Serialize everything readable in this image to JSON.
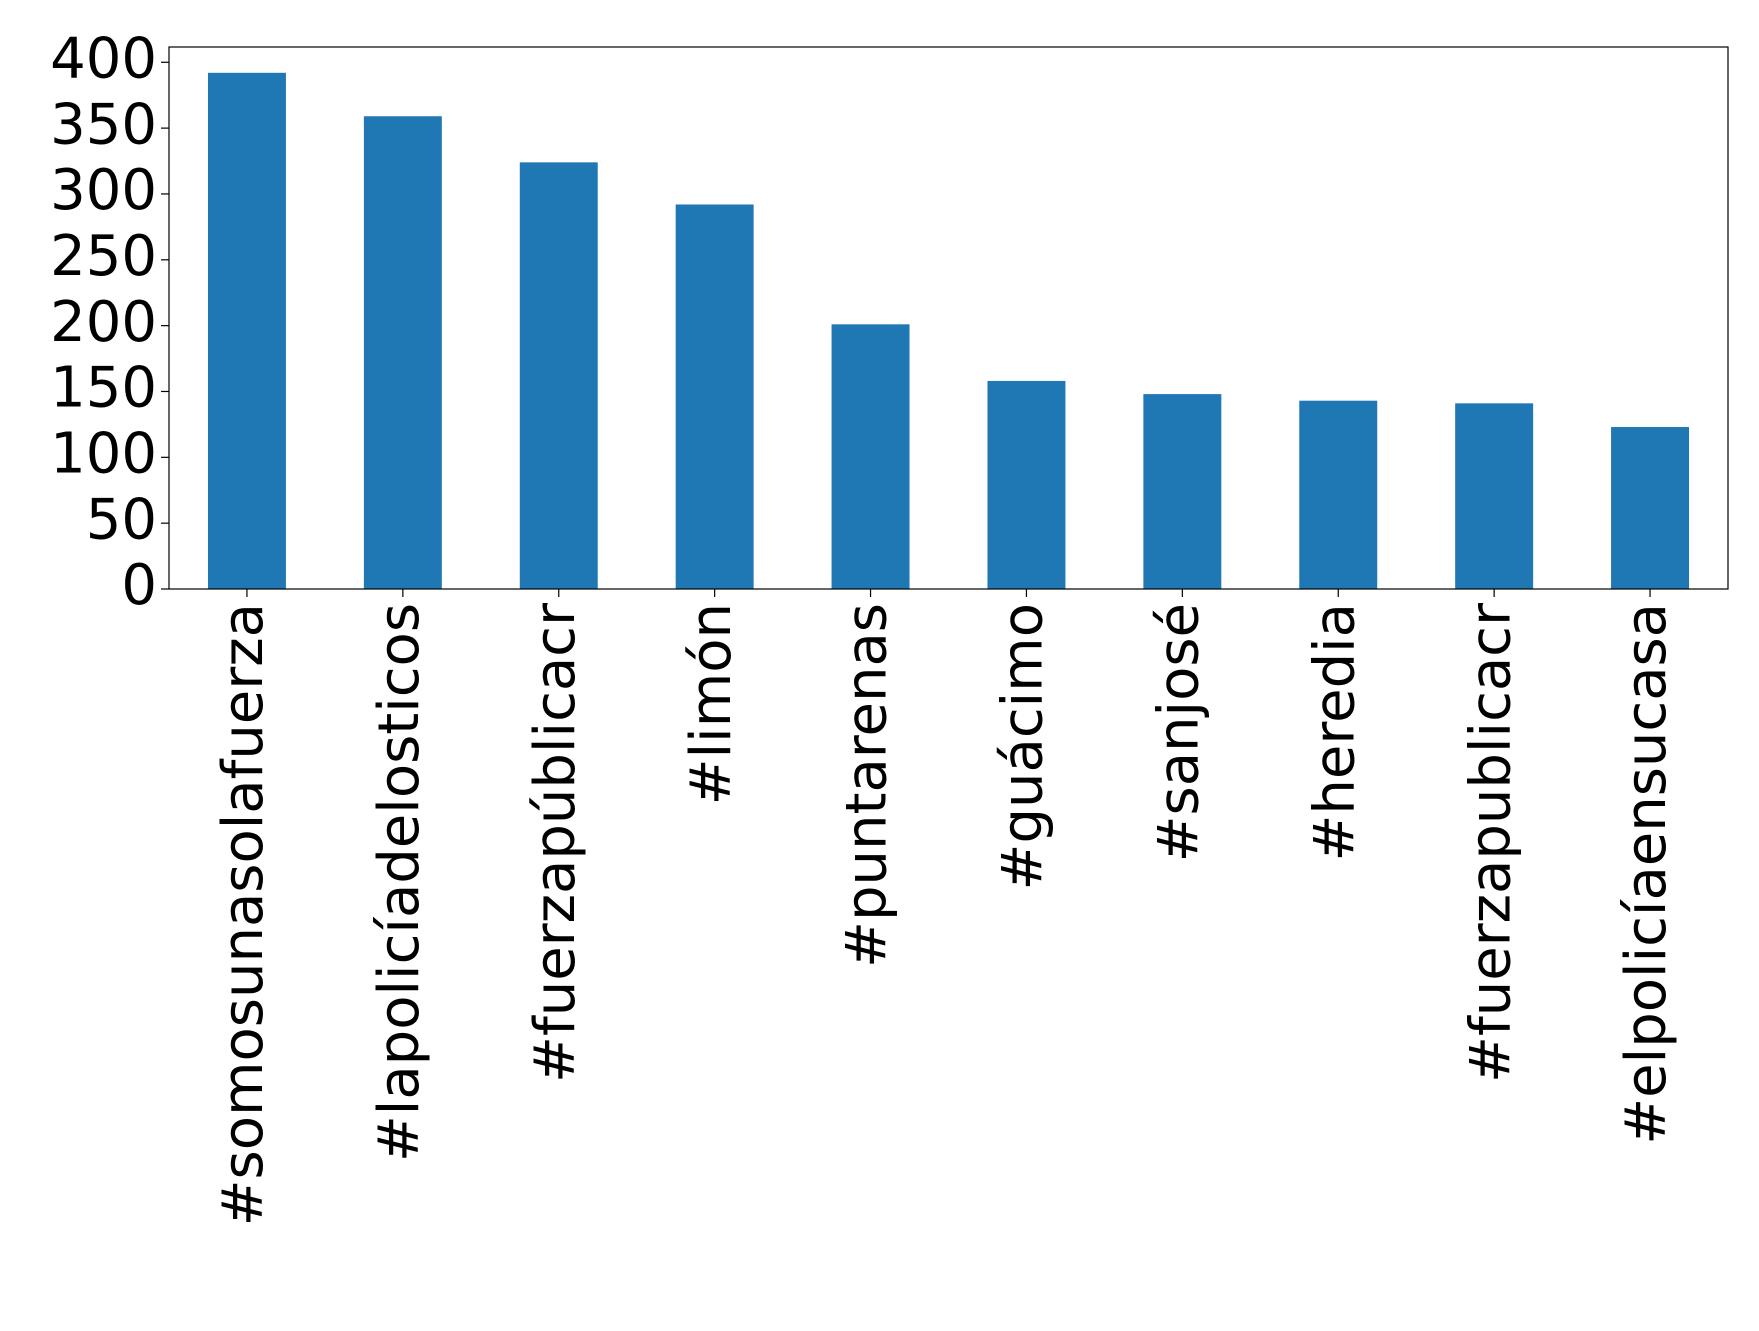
{
  "chart_data": {
    "type": "bar",
    "categories": [
      "#somosunasolafuerza",
      "#lapolicíadelosticos",
      "#fuerzapúblicacr",
      "#limón",
      "#puntarenas",
      "#guácimo",
      "#sanjosé",
      "#heredia",
      "#fuerzapublicacr",
      "#elpolicíaensucasa"
    ],
    "values": [
      392,
      359,
      324,
      292,
      201,
      158,
      148,
      143,
      141,
      123
    ],
    "color": "#1f77b4",
    "ylim": [
      0,
      411.6
    ],
    "yticks": [
      0,
      50,
      100,
      150,
      200,
      250,
      300,
      350,
      400
    ],
    "grid": false
  }
}
